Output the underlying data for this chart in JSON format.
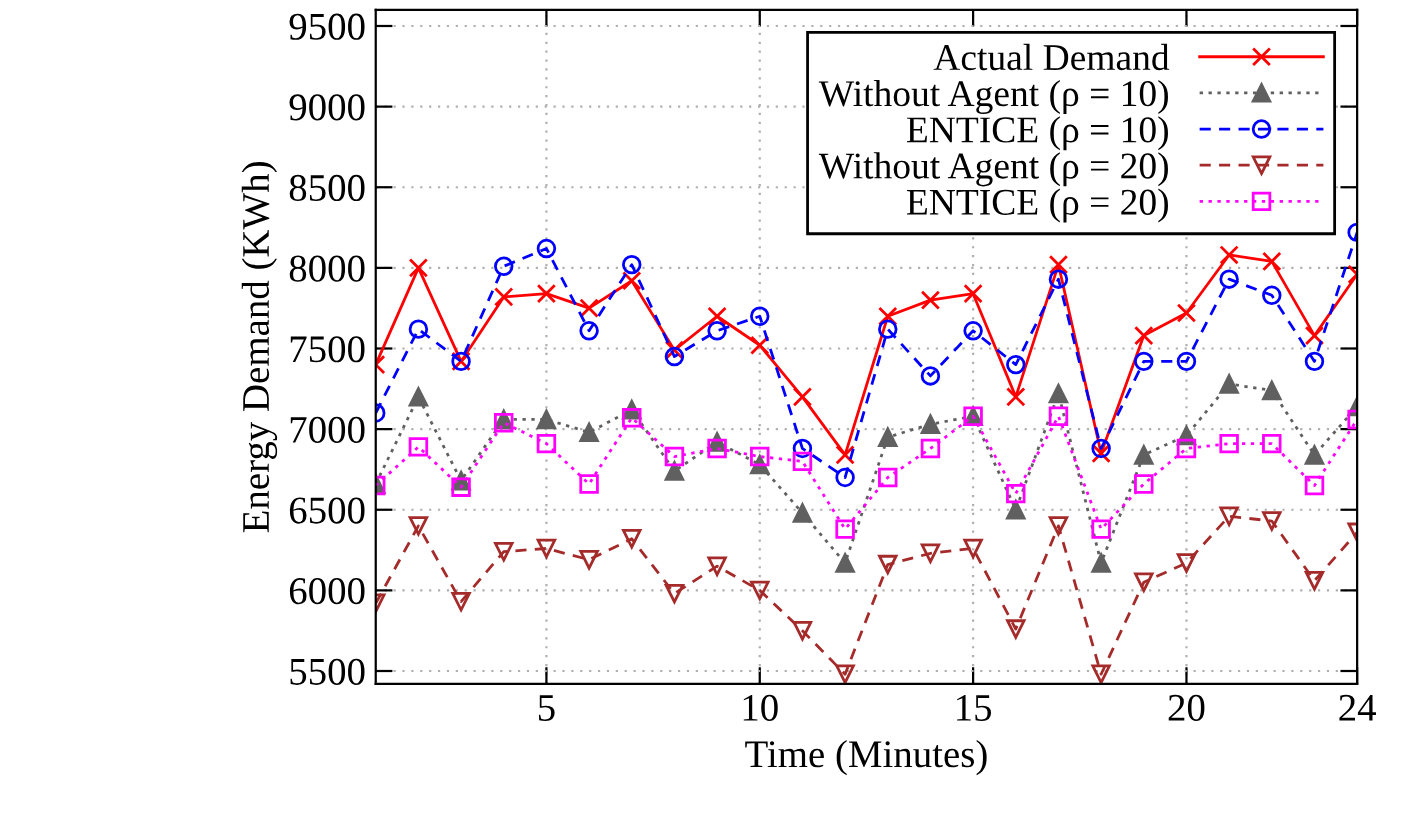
{
  "chart_data": {
    "type": "line",
    "xlabel": "Time (Minutes)",
    "ylabel": "Energy Demand (KWh)",
    "x": [
      1,
      2,
      3,
      4,
      5,
      6,
      7,
      8,
      9,
      10,
      11,
      12,
      13,
      14,
      15,
      16,
      17,
      18,
      19,
      20,
      21,
      22,
      23,
      24
    ],
    "xlim": [
      1,
      24
    ],
    "xticks": [
      5,
      10,
      15,
      20,
      24
    ],
    "ylim": [
      5420,
      9600
    ],
    "yticks": [
      5500,
      6000,
      6500,
      7000,
      7500,
      8000,
      8500,
      9000,
      9500
    ],
    "grid": true,
    "legend": "top right",
    "series": [
      {
        "name": "Actual Demand",
        "color": "#ff0000",
        "marker": "cross",
        "line_style": "solid",
        "values": [
          7400,
          8000,
          7420,
          7820,
          7840,
          7750,
          7920,
          7490,
          7700,
          7520,
          7200,
          6840,
          7700,
          7800,
          7840,
          7200,
          8020,
          6850,
          7580,
          7720,
          8080,
          8040,
          7580,
          7960
        ]
      },
      {
        "name": "Without Agent (ρ = 10)",
        "color": "#606060",
        "marker": "triangle",
        "line_style": "dotted",
        "values": [
          6660,
          7200,
          6680,
          7060,
          7060,
          6980,
          7120,
          6740,
          6920,
          6780,
          6480,
          6170,
          6950,
          7030,
          7080,
          6500,
          7220,
          6170,
          6840,
          6960,
          7280,
          7240,
          6840,
          7140
        ]
      },
      {
        "name": "ENTICE (ρ = 10)",
        "color": "#0000ff",
        "marker": "circle",
        "line_style": "dashed",
        "values": [
          7100,
          7620,
          7420,
          8010,
          8120,
          7610,
          8020,
          7450,
          7610,
          7700,
          6880,
          6700,
          7620,
          7330,
          7610,
          7400,
          7930,
          6880,
          7420,
          7420,
          7930,
          7830,
          7420,
          8220
        ]
      },
      {
        "name": "Without Agent (ρ = 20)",
        "color": "#a52a2a",
        "marker": "triangle_down",
        "line_style": "dashed",
        "values": [
          5920,
          6400,
          5930,
          6240,
          6260,
          6190,
          6320,
          5980,
          6150,
          6000,
          5750,
          5480,
          6160,
          6230,
          6260,
          5760,
          6400,
          5480,
          6050,
          6170,
          6460,
          6430,
          6060,
          6360
        ]
      },
      {
        "name": "ENTICE (ρ = 20)",
        "color": "#ff00ff",
        "marker": "square",
        "line_style": "dotted",
        "values": [
          6650,
          6890,
          6640,
          7040,
          6910,
          6660,
          7070,
          6830,
          6880,
          6830,
          6800,
          6380,
          6700,
          6880,
          7080,
          6600,
          7080,
          6380,
          6660,
          6880,
          6910,
          6910,
          6650,
          7060
        ]
      }
    ]
  }
}
